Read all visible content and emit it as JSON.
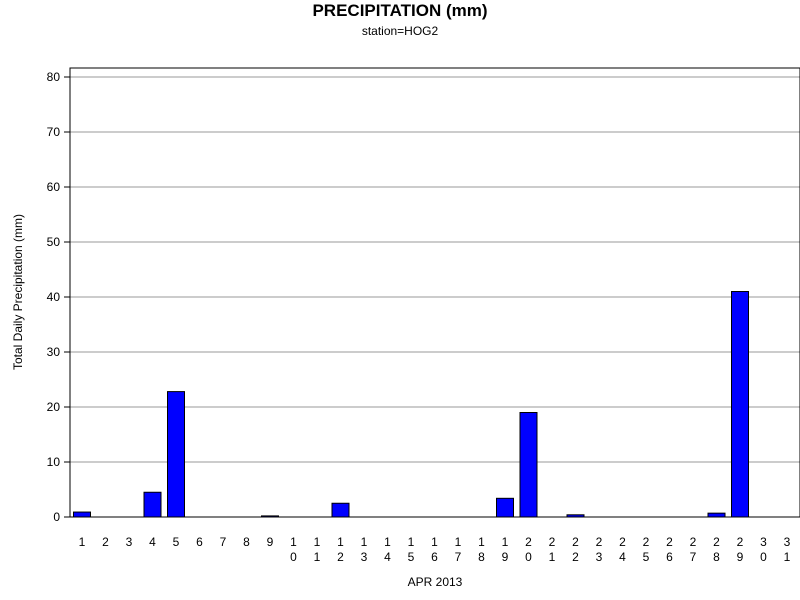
{
  "chart_data": {
    "type": "bar",
    "title": "PRECIPITATION (mm)",
    "subtitle": "station=HOG2",
    "xlabel": "APR 2013",
    "ylabel": "Total Daily Precipitation (mm)",
    "ylim": [
      0,
      80
    ],
    "yticks": [
      0,
      10,
      20,
      30,
      40,
      50,
      60,
      70,
      80
    ],
    "grid": true,
    "bar_color": "#0000ff",
    "categories": [
      "1",
      "2",
      "3",
      "4",
      "5",
      "6",
      "7",
      "8",
      "9",
      "10",
      "11",
      "12",
      "13",
      "14",
      "15",
      "16",
      "17",
      "18",
      "19",
      "20",
      "21",
      "22",
      "23",
      "24",
      "25",
      "26",
      "27",
      "28",
      "29",
      "30",
      "31"
    ],
    "values": [
      0.9,
      0,
      0,
      4.5,
      22.8,
      0,
      0,
      0,
      0.2,
      0,
      0,
      2.5,
      0,
      0,
      0,
      0,
      0,
      0,
      3.4,
      19.0,
      0,
      0.4,
      0,
      0,
      0,
      0,
      0,
      0.7,
      41.0,
      0,
      0
    ]
  }
}
